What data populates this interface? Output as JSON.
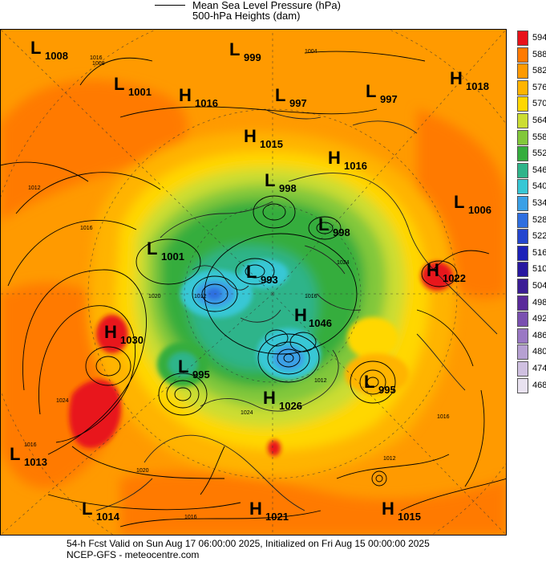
{
  "legend": {
    "mslp": "Mean Sea Level Pressure (hPa)",
    "heights": "500-hPa Heights (dam)"
  },
  "colorbar": {
    "labels": [
      "594",
      "588",
      "582",
      "576",
      "570",
      "564",
      "558",
      "552",
      "546",
      "540",
      "534",
      "528",
      "522",
      "516",
      "510",
      "504",
      "498",
      "492",
      "486",
      "480",
      "474",
      "468"
    ],
    "colors": [
      "#e8121a",
      "#ff7a00",
      "#ff9a00",
      "#ffb400",
      "#ffd700",
      "#ccdd33",
      "#82c83a",
      "#35ad3d",
      "#2fb48a",
      "#37c7d5",
      "#3aa0e6",
      "#2f6fe0",
      "#2446cf",
      "#1d22b8",
      "#2818a0",
      "#3b1c95",
      "#5a2a9a",
      "#7a50b0",
      "#9a78c4",
      "#b6a0d2",
      "#cfc0e0",
      "#e9e2f0"
    ]
  },
  "pressure_centers": [
    {
      "type": "L",
      "value": "1008"
    },
    {
      "type": "L",
      "value": "999"
    },
    {
      "type": "L",
      "value": "1001"
    },
    {
      "type": "H",
      "value": "1016"
    },
    {
      "type": "L",
      "value": "997"
    },
    {
      "type": "L",
      "value": "997"
    },
    {
      "type": "H",
      "value": "1018"
    },
    {
      "type": "H",
      "value": "1015"
    },
    {
      "type": "H",
      "value": "1016"
    },
    {
      "type": "L",
      "value": "998"
    },
    {
      "type": "L",
      "value": "1006"
    },
    {
      "type": "L",
      "value": "998"
    },
    {
      "type": "L",
      "value": "1001"
    },
    {
      "type": "L",
      "value": "993"
    },
    {
      "type": "H",
      "value": "1022"
    },
    {
      "type": "H",
      "value": "1030"
    },
    {
      "type": "H",
      "value": "1046"
    },
    {
      "type": "L",
      "value": "995"
    },
    {
      "type": "L",
      "value": "995"
    },
    {
      "type": "H",
      "value": "1026"
    },
    {
      "type": "L",
      "value": "1013"
    },
    {
      "type": "L",
      "value": "1014"
    },
    {
      "type": "H",
      "value": "1021"
    },
    {
      "type": "H",
      "value": "1015"
    }
  ],
  "contour_labels": [
    "1008",
    "1004",
    "1012",
    "1016",
    "1020",
    "1024",
    "1016",
    "1012",
    "1016",
    "1024",
    "1020",
    "1016",
    "1012",
    "1016",
    "1024",
    "1012",
    "1016"
  ],
  "footer": {
    "line1": "54-h Fcst Valid on Sun Aug 17 06:00:00 2025, Initialized on Fri Aug 15 00:00:00 2025",
    "line2": "NCEP-GFS  - meteocentre.com"
  }
}
